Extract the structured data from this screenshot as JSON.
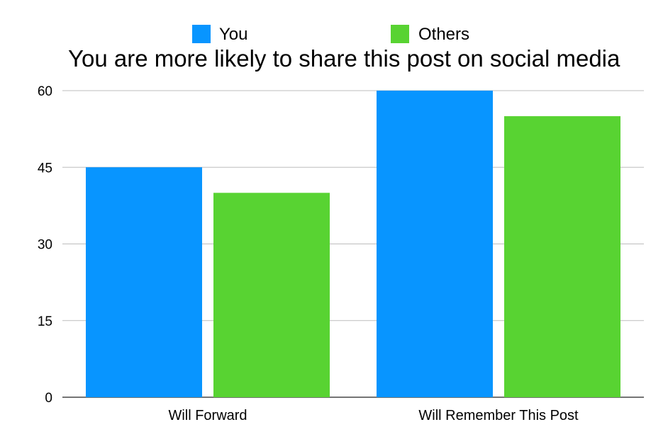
{
  "chart_data": {
    "type": "bar",
    "title": "You are more likely to share this post on social media",
    "categories": [
      "Will Forward",
      "Will Remember This Post"
    ],
    "series": [
      {
        "name": "You",
        "values": [
          45,
          60
        ],
        "color": "#0895FF"
      },
      {
        "name": "Others",
        "values": [
          40,
          55
        ],
        "color": "#58D332"
      }
    ],
    "ylim": [
      0,
      60
    ],
    "yticks": [
      0,
      15,
      30,
      45,
      60
    ],
    "grid": true,
    "legend_position": "top"
  }
}
